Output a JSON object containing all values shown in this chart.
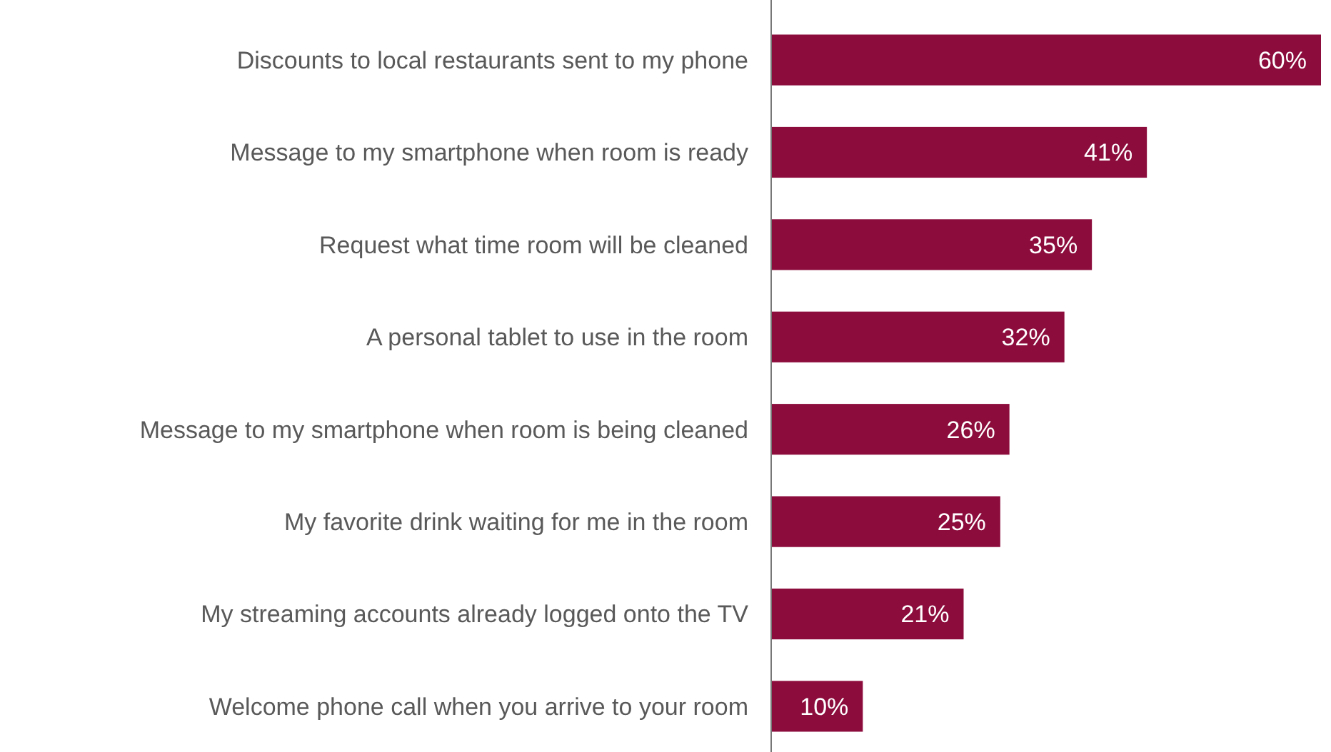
{
  "chart_data": {
    "type": "bar",
    "orientation": "horizontal",
    "categories": [
      "Discounts to local restaurants sent to my phone",
      "Message to my smartphone when room is ready",
      "Request what time room will be cleaned",
      "A personal tablet to use in the room",
      "Message to my smartphone when room is being cleaned",
      "My favorite drink waiting for me in the room",
      "My streaming accounts already logged onto the TV",
      "Welcome phone call when you arrive to your room"
    ],
    "values": [
      60,
      41,
      35,
      32,
      26,
      25,
      21,
      10
    ],
    "value_labels": [
      "60%",
      "41%",
      "35%",
      "32%",
      "26%",
      "25%",
      "21%",
      "10%"
    ],
    "color": "#8c0c3c"
  }
}
